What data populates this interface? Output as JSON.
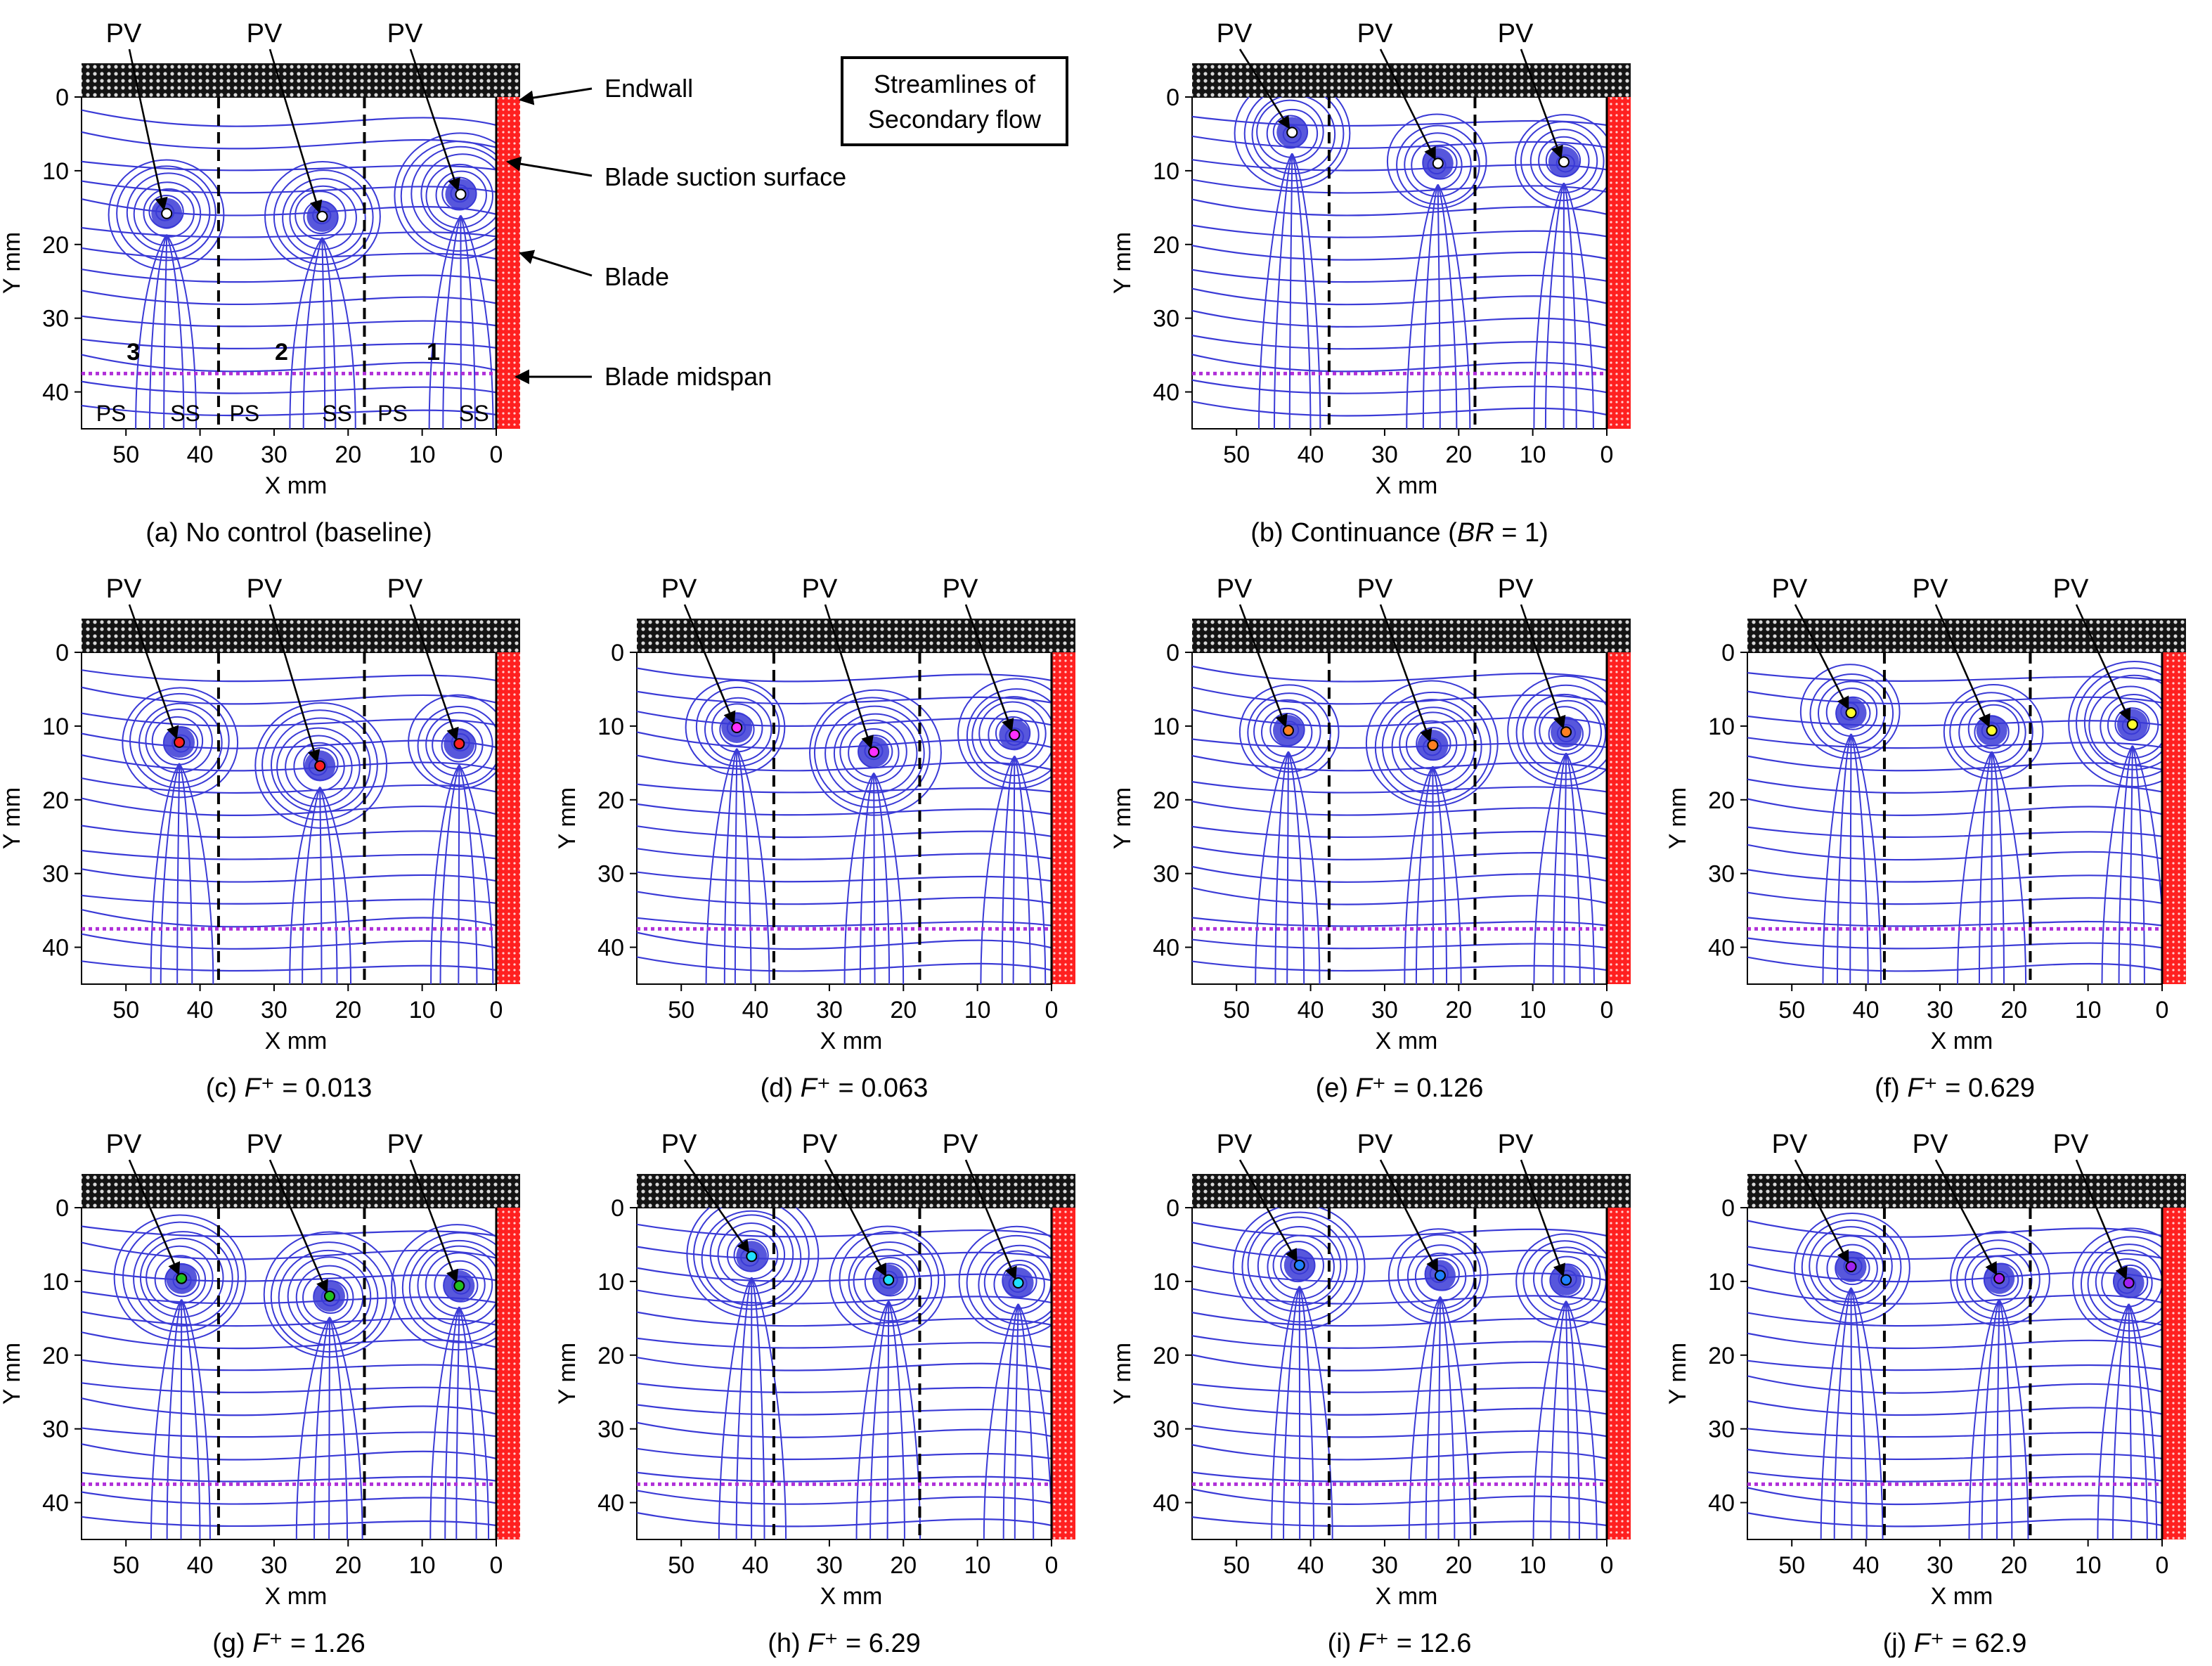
{
  "figure": {
    "legend_box": {
      "line1": "Streamlines of",
      "line2": "Secondary flow"
    },
    "annotations": {
      "endwall": "Endwall",
      "suction": "Blade suction surface",
      "blade": "Blade",
      "midspan": "Blade midspan"
    },
    "passage_numbers": [
      "3",
      "2",
      "1"
    ],
    "surface_labels": [
      "PS",
      "SS",
      "PS",
      "SS",
      "PS",
      "SS"
    ],
    "pv_label": "PV",
    "colors": {
      "streamline": "#3a3ad6",
      "blade": "#ff2020",
      "endwall": "#111111",
      "midspan": "#b030d8",
      "passage_divider": "#000000"
    }
  },
  "chart_data": [
    {
      "type": "scatter",
      "panel": "a",
      "caption": {
        "prefix": "(a) No control (baseline)",
        "italic": "",
        "mid": "",
        "suffix": ""
      },
      "xlabel": "X mm",
      "ylabel": "Y mm",
      "xlim": [
        56,
        0
      ],
      "ylim": [
        0,
        45
      ],
      "xticks": [
        "50",
        "40",
        "30",
        "20",
        "10",
        "0"
      ],
      "yticks": [
        "0",
        "10",
        "20",
        "30",
        "40"
      ],
      "passage_boundaries_x": [
        37.5,
        17.8
      ],
      "midspan_y": 37.5,
      "vortex_cores": [
        {
          "label": "PV",
          "x": 44.5,
          "y": 15.8,
          "color": "#ffffff"
        },
        {
          "label": "PV",
          "x": 23.5,
          "y": 16.2,
          "color": "#ffffff"
        },
        {
          "label": "PV",
          "x": 4.8,
          "y": 13.2,
          "color": "#ffffff"
        }
      ]
    },
    {
      "type": "scatter",
      "panel": "b",
      "caption": {
        "prefix": "(b) Continuance (",
        "italic": "BR",
        "mid": " = 1)",
        "suffix": ""
      },
      "xlabel": "X mm",
      "ylabel": "Y mm",
      "xlim": [
        56,
        0
      ],
      "ylim": [
        0,
        45
      ],
      "xticks": [
        "50",
        "40",
        "30",
        "20",
        "10",
        "0"
      ],
      "yticks": [
        "0",
        "10",
        "20",
        "30",
        "40"
      ],
      "passage_boundaries_x": [
        37.5,
        17.8
      ],
      "midspan_y": 37.5,
      "vortex_cores": [
        {
          "label": "PV",
          "x": 42.5,
          "y": 4.8,
          "color": "#ffffff"
        },
        {
          "label": "PV",
          "x": 22.8,
          "y": 9.0,
          "color": "#ffffff"
        },
        {
          "label": "PV",
          "x": 5.8,
          "y": 8.8,
          "color": "#ffffff"
        }
      ]
    },
    {
      "type": "scatter",
      "panel": "c",
      "caption": {
        "prefix": "(c) ",
        "italic": "F",
        "mid": "⁺",
        "suffix": " = 0.013"
      },
      "xlabel": "X mm",
      "ylabel": "Y mm",
      "xlim": [
        56,
        0
      ],
      "ylim": [
        0,
        45
      ],
      "xticks": [
        "50",
        "40",
        "30",
        "20",
        "10",
        "0"
      ],
      "yticks": [
        "0",
        "10",
        "20",
        "30",
        "40"
      ],
      "passage_boundaries_x": [
        37.5,
        17.8
      ],
      "midspan_y": 37.5,
      "vortex_cores": [
        {
          "label": "PV",
          "x": 42.8,
          "y": 12.2,
          "color": "#ff2020"
        },
        {
          "label": "PV",
          "x": 23.8,
          "y": 15.4,
          "color": "#ff2020"
        },
        {
          "label": "PV",
          "x": 5.0,
          "y": 12.4,
          "color": "#ff2020"
        }
      ]
    },
    {
      "type": "scatter",
      "panel": "d",
      "caption": {
        "prefix": "(d) ",
        "italic": "F",
        "mid": "⁺",
        "suffix": " = 0.063"
      },
      "xlabel": "X mm",
      "ylabel": "Y mm",
      "xlim": [
        56,
        0
      ],
      "ylim": [
        0,
        45
      ],
      "xticks": [
        "50",
        "40",
        "30",
        "20",
        "10",
        "0"
      ],
      "yticks": [
        "0",
        "10",
        "20",
        "30",
        "40"
      ],
      "passage_boundaries_x": [
        37.5,
        17.8
      ],
      "midspan_y": 37.5,
      "vortex_cores": [
        {
          "label": "PV",
          "x": 42.5,
          "y": 10.2,
          "color": "#ff30ff"
        },
        {
          "label": "PV",
          "x": 24.0,
          "y": 13.5,
          "color": "#ff30ff"
        },
        {
          "label": "PV",
          "x": 5.0,
          "y": 11.2,
          "color": "#ff30ff"
        }
      ]
    },
    {
      "type": "scatter",
      "panel": "e",
      "caption": {
        "prefix": "(e) ",
        "italic": "F",
        "mid": "⁺",
        "suffix": " = 0.126"
      },
      "xlabel": "X mm",
      "ylabel": "Y mm",
      "xlim": [
        56,
        0
      ],
      "ylim": [
        0,
        45
      ],
      "xticks": [
        "50",
        "40",
        "30",
        "20",
        "10",
        "0"
      ],
      "yticks": [
        "0",
        "10",
        "20",
        "30",
        "40"
      ],
      "passage_boundaries_x": [
        37.5,
        17.8
      ],
      "midspan_y": 37.5,
      "vortex_cores": [
        {
          "label": "PV",
          "x": 43.0,
          "y": 10.6,
          "color": "#ff8020"
        },
        {
          "label": "PV",
          "x": 23.5,
          "y": 12.6,
          "color": "#ff8020"
        },
        {
          "label": "PV",
          "x": 5.5,
          "y": 10.8,
          "color": "#ff8020"
        }
      ]
    },
    {
      "type": "scatter",
      "panel": "f",
      "caption": {
        "prefix": "(f) ",
        "italic": "F",
        "mid": "⁺",
        "suffix": " = 0.629"
      },
      "xlabel": "X mm",
      "ylabel": "Y mm",
      "xlim": [
        56,
        0
      ],
      "ylim": [
        0,
        45
      ],
      "xticks": [
        "50",
        "40",
        "30",
        "20",
        "10",
        "0"
      ],
      "yticks": [
        "0",
        "10",
        "20",
        "30",
        "40"
      ],
      "passage_boundaries_x": [
        37.5,
        17.8
      ],
      "midspan_y": 37.5,
      "vortex_cores": [
        {
          "label": "PV",
          "x": 42.0,
          "y": 8.2,
          "color": "#ffff30"
        },
        {
          "label": "PV",
          "x": 23.0,
          "y": 10.6,
          "color": "#ffff30"
        },
        {
          "label": "PV",
          "x": 4.0,
          "y": 9.8,
          "color": "#ffff30"
        }
      ]
    },
    {
      "type": "scatter",
      "panel": "g",
      "caption": {
        "prefix": "(g) ",
        "italic": "F",
        "mid": "⁺",
        "suffix": " = 1.26"
      },
      "xlabel": "X mm",
      "ylabel": "Y mm",
      "xlim": [
        56,
        0
      ],
      "ylim": [
        0,
        45
      ],
      "xticks": [
        "50",
        "40",
        "30",
        "20",
        "10",
        "0"
      ],
      "yticks": [
        "0",
        "10",
        "20",
        "30",
        "40"
      ],
      "passage_boundaries_x": [
        37.5,
        17.8
      ],
      "midspan_y": 37.5,
      "vortex_cores": [
        {
          "label": "PV",
          "x": 42.5,
          "y": 9.6,
          "color": "#20c020"
        },
        {
          "label": "PV",
          "x": 22.5,
          "y": 12.0,
          "color": "#20c020"
        },
        {
          "label": "PV",
          "x": 5.0,
          "y": 10.6,
          "color": "#20c020"
        }
      ]
    },
    {
      "type": "scatter",
      "panel": "h",
      "caption": {
        "prefix": "(h) ",
        "italic": "F",
        "mid": "⁺",
        "suffix": " = 6.29"
      },
      "xlabel": "X mm",
      "ylabel": "Y mm",
      "xlim": [
        56,
        0
      ],
      "ylim": [
        0,
        45
      ],
      "xticks": [
        "50",
        "40",
        "30",
        "20",
        "10",
        "0"
      ],
      "yticks": [
        "0",
        "10",
        "20",
        "30",
        "40"
      ],
      "passage_boundaries_x": [
        37.5,
        17.8
      ],
      "midspan_y": 37.5,
      "vortex_cores": [
        {
          "label": "PV",
          "x": 40.5,
          "y": 6.6,
          "color": "#20e0ff"
        },
        {
          "label": "PV",
          "x": 22.0,
          "y": 9.8,
          "color": "#20e0ff"
        },
        {
          "label": "PV",
          "x": 4.5,
          "y": 10.2,
          "color": "#20e0ff"
        }
      ]
    },
    {
      "type": "scatter",
      "panel": "i",
      "caption": {
        "prefix": "(i) ",
        "italic": "F",
        "mid": "⁺",
        "suffix": " = 12.6"
      },
      "xlabel": "X mm",
      "ylabel": "Y mm",
      "xlim": [
        56,
        0
      ],
      "ylim": [
        0,
        45
      ],
      "xticks": [
        "50",
        "40",
        "30",
        "20",
        "10",
        "0"
      ],
      "yticks": [
        "0",
        "10",
        "20",
        "30",
        "40"
      ],
      "passage_boundaries_x": [
        37.5,
        17.8
      ],
      "midspan_y": 37.5,
      "vortex_cores": [
        {
          "label": "PV",
          "x": 41.5,
          "y": 7.8,
          "color": "#2080ff"
        },
        {
          "label": "PV",
          "x": 22.5,
          "y": 9.2,
          "color": "#2080ff"
        },
        {
          "label": "PV",
          "x": 5.5,
          "y": 9.8,
          "color": "#2080ff"
        }
      ]
    },
    {
      "type": "scatter",
      "panel": "j",
      "caption": {
        "prefix": "(j) ",
        "italic": "F",
        "mid": "⁺",
        "suffix": " = 62.9"
      },
      "xlabel": "X mm",
      "ylabel": "Y mm",
      "xlim": [
        56,
        0
      ],
      "ylim": [
        0,
        45
      ],
      "xticks": [
        "50",
        "40",
        "30",
        "20",
        "10",
        "0"
      ],
      "yticks": [
        "0",
        "10",
        "20",
        "30",
        "40"
      ],
      "passage_boundaries_x": [
        37.5,
        17.8
      ],
      "midspan_y": 37.5,
      "vortex_cores": [
        {
          "label": "PV",
          "x": 42.0,
          "y": 8.0,
          "color": "#a020f0"
        },
        {
          "label": "PV",
          "x": 22.0,
          "y": 9.6,
          "color": "#a020f0"
        },
        {
          "label": "PV",
          "x": 4.5,
          "y": 10.2,
          "color": "#a020f0"
        }
      ]
    }
  ]
}
